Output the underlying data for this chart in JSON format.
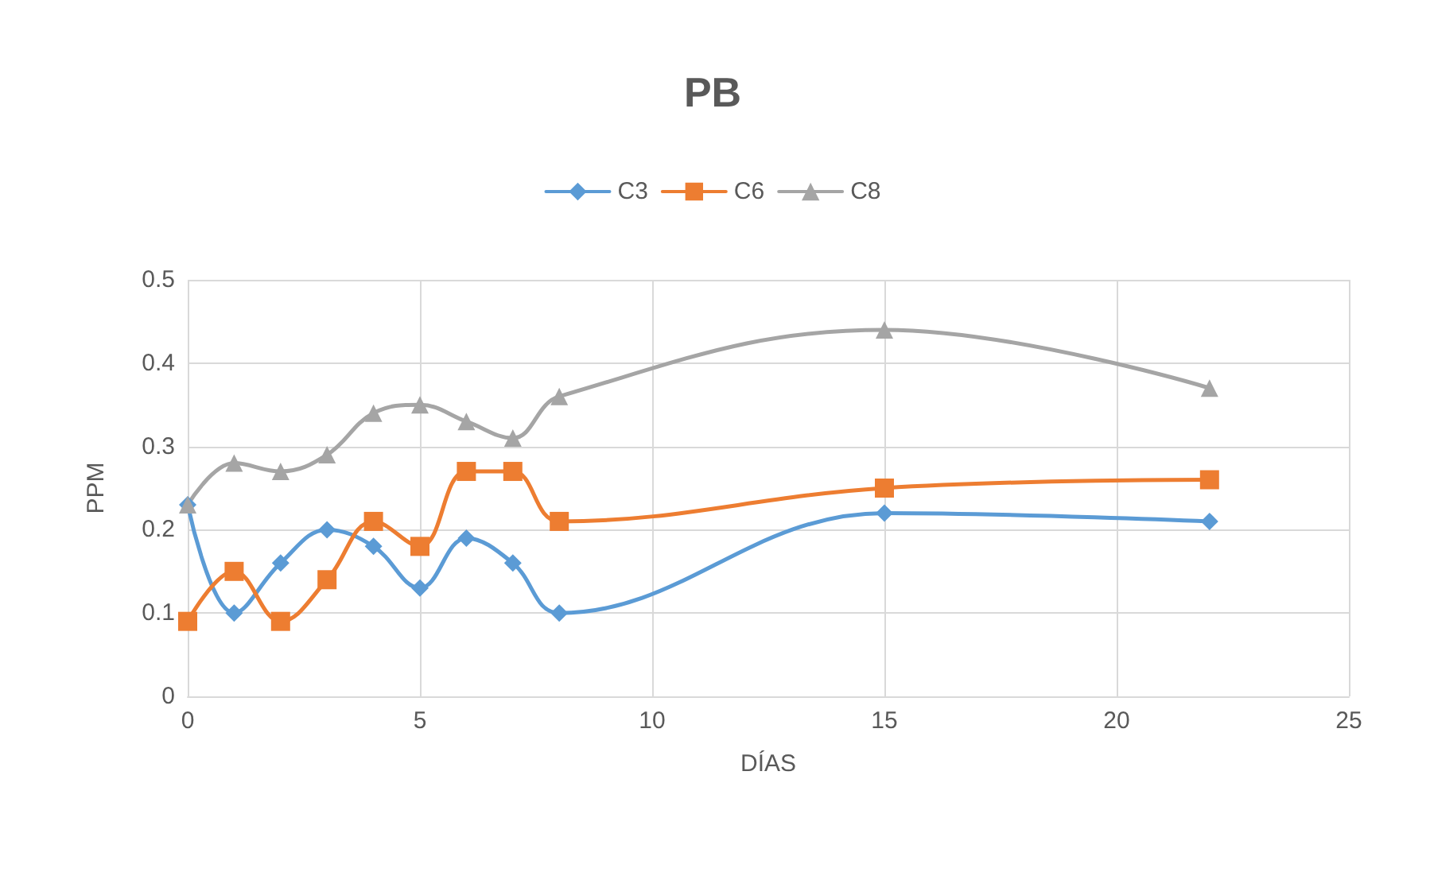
{
  "chart_data": {
    "type": "line",
    "title": "PB",
    "xlabel": "DÍAS",
    "ylabel": "PPM",
    "x": [
      0,
      1,
      2,
      3,
      4,
      5,
      6,
      7,
      8,
      15,
      22
    ],
    "series": [
      {
        "name": "C3",
        "color": "#5b9bd5",
        "marker": "diamond",
        "values": [
          0.23,
          0.1,
          0.16,
          0.2,
          0.18,
          0.13,
          0.19,
          0.16,
          0.1,
          0.22,
          0.21
        ]
      },
      {
        "name": "C6",
        "color": "#ed7d31",
        "marker": "square",
        "values": [
          0.09,
          0.15,
          0.09,
          0.14,
          0.21,
          0.18,
          0.27,
          0.27,
          0.21,
          0.25,
          0.26
        ]
      },
      {
        "name": "C8",
        "color": "#a5a5a5",
        "marker": "triangle",
        "values": [
          0.23,
          0.28,
          0.27,
          0.29,
          0.34,
          0.35,
          0.33,
          0.31,
          0.36,
          0.44,
          0.37
        ]
      }
    ],
    "xlim": [
      0,
      25
    ],
    "xticks": [
      0,
      5,
      10,
      15,
      20,
      25
    ],
    "ylim": [
      0,
      0.5
    ],
    "yticks": [
      0,
      0.1,
      0.2,
      0.3,
      0.4,
      0.5
    ],
    "grid": true,
    "legend": "top"
  }
}
